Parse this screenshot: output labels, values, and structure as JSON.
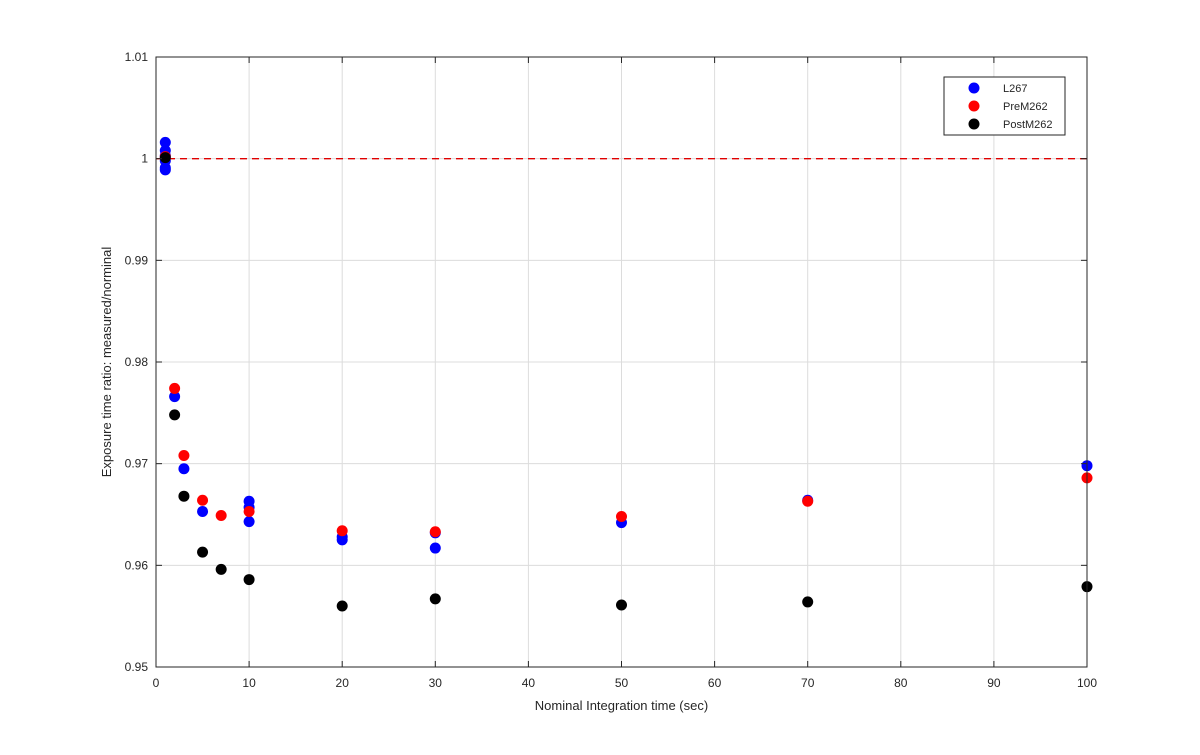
{
  "chart_data": {
    "type": "scatter",
    "title": "",
    "xlabel": "Nominal Integration time (sec)",
    "ylabel": "Exposure time ratio: measured/norminal",
    "xlim": [
      0,
      100
    ],
    "ylim": [
      0.95,
      1.01
    ],
    "xticks": [
      0,
      10,
      20,
      30,
      40,
      50,
      60,
      70,
      80,
      90,
      100
    ],
    "yticks": [
      0.95,
      0.96,
      0.97,
      0.98,
      0.99,
      1,
      1.01
    ],
    "xtick_labels": [
      "0",
      "10",
      "20",
      "30",
      "40",
      "50",
      "60",
      "70",
      "80",
      "90",
      "100"
    ],
    "ytick_labels": [
      "0.95",
      "0.96",
      "0.97",
      "0.98",
      "0.99",
      "1",
      "1.01"
    ],
    "grid": true,
    "legend_position": "top-right",
    "reference_line": {
      "y": 1.0,
      "style": "dashed",
      "color": "#e00000"
    },
    "series": [
      {
        "name": "L267",
        "color": "#0000ff",
        "points": [
          [
            1,
            1.0016
          ],
          [
            1,
            1.0008
          ],
          [
            1,
            1.0003
          ],
          [
            1,
            0.9998
          ],
          [
            1,
            0.9991
          ],
          [
            1,
            0.9989
          ],
          [
            2,
            0.9766
          ],
          [
            3,
            0.9695
          ],
          [
            5,
            0.9653
          ],
          [
            10,
            0.9663
          ],
          [
            10,
            0.9657
          ],
          [
            10,
            0.9643
          ],
          [
            20,
            0.9625
          ],
          [
            20,
            0.9628
          ],
          [
            30,
            0.9617
          ],
          [
            30,
            0.9632
          ],
          [
            50,
            0.9642
          ],
          [
            70,
            0.9664
          ],
          [
            100,
            0.9698
          ]
        ]
      },
      {
        "name": "PreM262",
        "color": "#ff0000",
        "points": [
          [
            1,
            1.0002
          ],
          [
            2,
            0.9774
          ],
          [
            3,
            0.9708
          ],
          [
            5,
            0.9664
          ],
          [
            7,
            0.9649
          ],
          [
            10,
            0.9653
          ],
          [
            20,
            0.9634
          ],
          [
            30,
            0.9633
          ],
          [
            50,
            0.9648
          ],
          [
            70,
            0.9663
          ],
          [
            100,
            0.9686
          ]
        ]
      },
      {
        "name": "PostM262",
        "color": "#000000",
        "points": [
          [
            1,
            1.0001
          ],
          [
            2,
            0.9748
          ],
          [
            3,
            0.9668
          ],
          [
            5,
            0.9613
          ],
          [
            7,
            0.9596
          ],
          [
            10,
            0.9586
          ],
          [
            20,
            0.956
          ],
          [
            30,
            0.9567
          ],
          [
            50,
            0.9561
          ],
          [
            70,
            0.9564
          ],
          [
            100,
            0.9579
          ]
        ]
      }
    ]
  }
}
